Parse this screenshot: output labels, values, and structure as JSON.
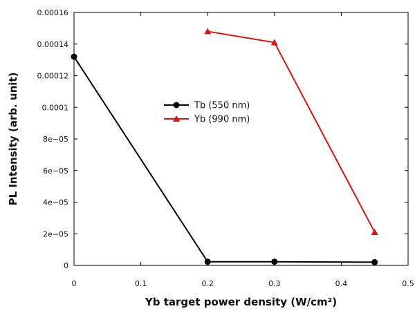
{
  "chart_data": {
    "type": "line",
    "xlabel": "Yb target power density (W/cm²)",
    "ylabel": "PL Intensity (arb. unit)",
    "xlim": [
      0,
      0.5
    ],
    "ylim": [
      0,
      0.00016
    ],
    "x_ticks": [
      {
        "value": 0,
        "label": "0"
      },
      {
        "value": 0.1,
        "label": "0.1"
      },
      {
        "value": 0.2,
        "label": "0.2"
      },
      {
        "value": 0.3,
        "label": "0.3"
      },
      {
        "value": 0.4,
        "label": "0.4"
      },
      {
        "value": 0.5,
        "label": "0.5"
      }
    ],
    "y_ticks": [
      {
        "value": 0,
        "label": "0"
      },
      {
        "value": 2e-05,
        "label": "2e−05"
      },
      {
        "value": 4e-05,
        "label": "4e−05"
      },
      {
        "value": 6e-05,
        "label": "6e−05"
      },
      {
        "value": 8e-05,
        "label": "8e−05"
      },
      {
        "value": 0.0001,
        "label": "0.0001"
      },
      {
        "value": 0.00012,
        "label": "0.00012"
      },
      {
        "value": 0.00014,
        "label": "0.00014"
      },
      {
        "value": 0.00016,
        "label": "0.00016"
      }
    ],
    "grid": false,
    "legend_position": "center-left",
    "series": [
      {
        "name": "Tb (550 nm)",
        "color": "#000000",
        "marker": "circle",
        "x": [
          0,
          0.2,
          0.3,
          0.45
        ],
        "y": [
          0.000132,
          2.3e-06,
          2.3e-06,
          2e-06
        ]
      },
      {
        "name": "Yb (990 nm)",
        "color": "#e01010",
        "marker": "triangle",
        "x": [
          0.2,
          0.3,
          0.45
        ],
        "y": [
          0.000148,
          0.000141,
          2.1e-05
        ]
      }
    ]
  }
}
